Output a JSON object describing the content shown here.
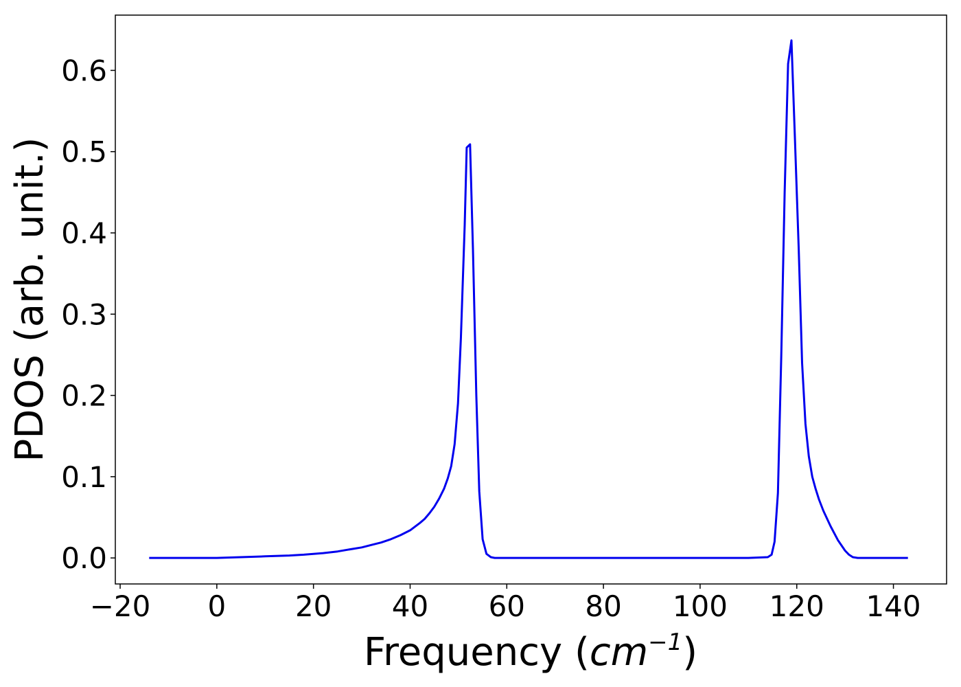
{
  "chart_data": {
    "type": "line",
    "title": "",
    "xlabel_text": "Frequency (",
    "xlabel_unit_base": "cm",
    "xlabel_unit_exp": "−1",
    "xlabel_close": ")",
    "ylabel": "PDOS (arb. unit.)",
    "xlim": [
      -21,
      151
    ],
    "ylim": [
      -0.032,
      0.668
    ],
    "xticks": [
      -20,
      0,
      20,
      40,
      60,
      80,
      100,
      120,
      140
    ],
    "xtick_labels": [
      "−20",
      "0",
      "20",
      "40",
      "60",
      "80",
      "100",
      "120",
      "140"
    ],
    "yticks": [
      0.0,
      0.1,
      0.2,
      0.3,
      0.4,
      0.5,
      0.6
    ],
    "ytick_labels": [
      "0.0",
      "0.1",
      "0.2",
      "0.3",
      "0.4",
      "0.5",
      "0.6"
    ],
    "grid": false,
    "series": [
      {
        "color": "#0000ee",
        "x": [
          -14,
          -10,
          -5,
          0,
          5,
          10,
          15,
          18,
          20,
          22,
          25,
          28,
          30,
          32,
          34,
          36,
          38,
          40,
          42,
          43,
          44,
          45,
          46,
          47,
          47.8,
          48.5,
          49.2,
          49.9,
          50.5,
          51.3,
          51.7,
          52.4,
          53,
          53.7,
          54.3,
          55,
          55.8,
          56.7,
          57.5,
          60,
          80,
          100,
          110,
          114,
          114.8,
          115.4,
          116.1,
          116.8,
          117.5,
          118.2,
          118.9,
          119.6,
          120.4,
          121.1,
          121.8,
          122.5,
          123.2,
          123.9,
          124.6,
          125.5,
          127,
          128.5,
          130,
          130.8,
          131.6,
          132.6,
          134,
          136,
          140,
          143
        ],
        "y": [
          0.0,
          0.0,
          0.0,
          0.0,
          0.001,
          0.002,
          0.003,
          0.004,
          0.005,
          0.006,
          0.008,
          0.011,
          0.013,
          0.016,
          0.019,
          0.023,
          0.028,
          0.034,
          0.043,
          0.048,
          0.055,
          0.063,
          0.073,
          0.085,
          0.098,
          0.113,
          0.14,
          0.19,
          0.27,
          0.41,
          0.505,
          0.509,
          0.38,
          0.2,
          0.082,
          0.023,
          0.005,
          0.001,
          0.0,
          0.0,
          0.0,
          0.0,
          0.0,
          0.001,
          0.004,
          0.02,
          0.08,
          0.25,
          0.45,
          0.608,
          0.637,
          0.52,
          0.38,
          0.24,
          0.165,
          0.125,
          0.1,
          0.085,
          0.072,
          0.058,
          0.039,
          0.022,
          0.009,
          0.004,
          0.001,
          0.0,
          0.0,
          0.0,
          0.0,
          0.0
        ]
      }
    ]
  }
}
